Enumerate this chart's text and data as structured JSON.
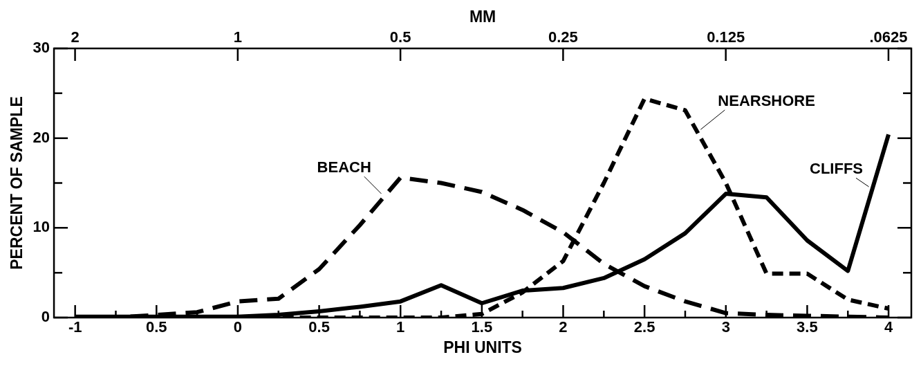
{
  "chart_data": {
    "type": "line",
    "xlabel": "PHI UNITS",
    "x2label": "MM",
    "ylabel": "PERCENT OF SAMPLE",
    "x": [
      -1,
      -0.75,
      -0.5,
      -0.25,
      0,
      0.25,
      0.5,
      0.75,
      1,
      1.25,
      1.5,
      1.75,
      2,
      2.25,
      2.5,
      2.75,
      3,
      3.25,
      3.5,
      3.75,
      4
    ],
    "series": [
      {
        "name": "BEACH",
        "color": "#000000",
        "line_style": "dashed",
        "values": [
          0,
          0,
          0.3,
          0.6,
          1.8,
          2.1,
          5.4,
          10.3,
          15.6,
          15,
          14,
          12,
          9.5,
          6,
          3.5,
          1.8,
          0.5,
          0.3,
          0.2,
          0.1,
          0
        ]
      },
      {
        "name": "NEARSHORE",
        "color": "#000000",
        "line_style": "dashed",
        "values": [
          0,
          0,
          0,
          0,
          0,
          0,
          0,
          0,
          0,
          0,
          0.4,
          2.8,
          6.3,
          15,
          24.4,
          23.1,
          15,
          4.9,
          4.9,
          2,
          1
        ]
      },
      {
        "name": "CLIFFS",
        "color": "#000000",
        "line_style": "solid",
        "values": [
          0.1,
          0.1,
          0.1,
          0.1,
          0.1,
          0.3,
          0.7,
          1.2,
          1.8,
          3.6,
          1.6,
          3,
          3.3,
          4.4,
          6.5,
          9.4,
          13.8,
          13.4,
          8.6,
          5.2,
          20.4
        ]
      }
    ],
    "xlim": [
      -1.13,
      4.14
    ],
    "xticks": [
      -1,
      {
        "value": -0.75,
        "label": null
      },
      {
        "value": -0.5,
        "label": "0.5"
      },
      {
        "value": -0.25,
        "label": null
      },
      0,
      {
        "value": 0.25,
        "label": null
      },
      0.5,
      {
        "value": 0.75,
        "label": null
      },
      1,
      {
        "value": 1.25,
        "label": null
      },
      1.5,
      {
        "value": 1.75,
        "label": null
      },
      2,
      {
        "value": 2.25,
        "label": null
      },
      2.5,
      {
        "value": 2.75,
        "label": null
      },
      3,
      {
        "value": 3.25,
        "label": null
      },
      3.5,
      {
        "value": 3.75,
        "label": null
      },
      4
    ],
    "x2lim": [
      2.188,
      0.0567
    ],
    "x2ticks": [
      2,
      1,
      0.5,
      0.25,
      0.125,
      {
        "value": 0.0625,
        "label": ".0625"
      }
    ],
    "ylim": [
      0,
      30
    ],
    "yticks": [
      0,
      {
        "value": 5,
        "label": null
      },
      10,
      {
        "value": 15,
        "label": null
      },
      20,
      {
        "value": 25,
        "label": null
      },
      30
    ],
    "log": "x2",
    "grid": false,
    "legend": false,
    "marker": "none"
  }
}
